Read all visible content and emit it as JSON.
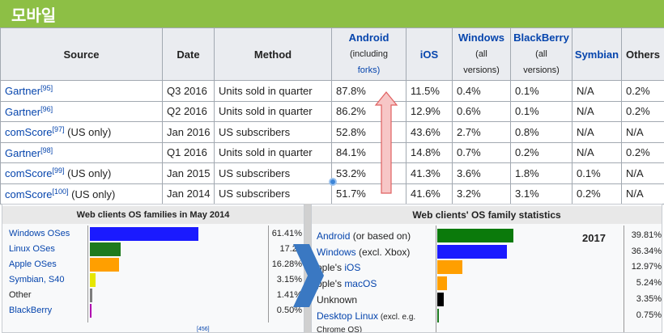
{
  "page_title": "모바일",
  "table": {
    "headers": [
      {
        "label": "Source",
        "link": false
      },
      {
        "label": "Date",
        "link": false
      },
      {
        "label": "Method",
        "link": false
      },
      {
        "label": "Android",
        "link": true,
        "sub": [
          "(including"
        ],
        "sub_link": "forks)"
      },
      {
        "label": "iOS",
        "link": true
      },
      {
        "label": "Windows",
        "link": true,
        "sub": [
          "(all",
          "versions)"
        ]
      },
      {
        "label": "BlackBerry",
        "link": true,
        "sub": [
          "(all",
          "versions)"
        ]
      },
      {
        "label": "Symbian",
        "link": true
      },
      {
        "label": "Others",
        "link": false
      }
    ],
    "rows": [
      {
        "source": "Gartner",
        "ref": "[95]",
        "note": "",
        "date": "Q3 2016",
        "method": "Units sold in quarter",
        "android": "87.8%",
        "ios": "11.5%",
        "windows": "0.4%",
        "blackberry": "0.1%",
        "symbian": "N/A",
        "others": "0.2%"
      },
      {
        "source": "Gartner",
        "ref": "[96]",
        "note": "",
        "date": "Q2 2016",
        "method": "Units sold in quarter",
        "android": "86.2%",
        "ios": "12.9%",
        "windows": "0.6%",
        "blackberry": "0.1%",
        "symbian": "N/A",
        "others": "0.2%"
      },
      {
        "source": "comScore",
        "ref": "[97]",
        "note": " (US only)",
        "date": "Jan 2016",
        "method": "US subscribers",
        "android": "52.8%",
        "ios": "43.6%",
        "windows": "2.7%",
        "blackberry": "0.8%",
        "symbian": "N/A",
        "others": "N/A"
      },
      {
        "source": "Gartner",
        "ref": "[98]",
        "note": "",
        "date": "Q1 2016",
        "method": "Units sold in quarter",
        "android": "84.1%",
        "ios": "14.8%",
        "windows": "0.7%",
        "blackberry": "0.2%",
        "symbian": "N/A",
        "others": "0.2%"
      },
      {
        "source": "comScore",
        "ref": "[99]",
        "note": " (US only)",
        "date": "Jan 2015",
        "method": "US subscribers",
        "android": "53.2%",
        "ios": "41.3%",
        "windows": "3.6%",
        "blackberry": "1.8%",
        "symbian": "0.1%",
        "others": "N/A"
      },
      {
        "source": "comScore",
        "ref": "[100]",
        "note": " (US only)",
        "date": "Jan 2014",
        "method": "US subscribers",
        "android": "51.7%",
        "ios": "41.6%",
        "windows": "3.2%",
        "blackberry": "3.1%",
        "symbian": "0.2%",
        "others": "N/A"
      }
    ]
  },
  "left_chart": {
    "title": "Web clients OS families in May 2014",
    "items": [
      {
        "label": "Windows OSes",
        "value": 61.41,
        "pct": "61.41%",
        "color": "#1a1aff",
        "link": true
      },
      {
        "label": "Linux OSes",
        "value": 17.22,
        "pct": "17.22",
        "color": "#1e7a1e",
        "link": true
      },
      {
        "label": "Apple OSes",
        "value": 16.28,
        "pct": "16.28%",
        "color": "#ff9f00",
        "link": true
      },
      {
        "label": "Symbian, S40",
        "value": 3.15,
        "pct": "3.15%",
        "color": "#e6e600",
        "link": true
      },
      {
        "label": "Other",
        "value": 1.41,
        "pct": "1.41%",
        "color": "#7d7d7d",
        "link": false
      },
      {
        "label": "BlackBerry",
        "value": 0.5,
        "pct": "0.50%",
        "color": "#b000b0",
        "link": true
      }
    ],
    "footnote": "[456]"
  },
  "right_chart": {
    "title": "Web clients' OS family statistics",
    "year": "2017",
    "items": [
      {
        "label": "Android",
        "suffix": " (or based on)",
        "value": 39.81,
        "pct": "39.81%",
        "color": "#0b7a0b",
        "link": true
      },
      {
        "label": "Windows",
        "suffix": " (excl. Xbox)",
        "value": 36.34,
        "pct": "36.34%",
        "color": "#1a1aff",
        "link": true
      },
      {
        "label": "pple's ",
        "linkpart": "iOS",
        "value": 12.97,
        "pct": "12.97%",
        "color": "#ff9f00",
        "link": false
      },
      {
        "label": "pple's ",
        "linkpart": "macOS",
        "value": 5.24,
        "pct": "5.24%",
        "color": "#ff9f00",
        "link": false
      },
      {
        "label": "Unknown",
        "value": 3.35,
        "pct": "3.35%",
        "color": "#000000",
        "link": false
      },
      {
        "label": "Desktop Linux",
        "suffix": " (excl. e.g.",
        "value": 0.75,
        "pct": "0.75%",
        "color": "#1e7a1e",
        "link": true
      }
    ],
    "last_line": "Chrome OS)"
  },
  "colors": {
    "title_bar": "#8dbf45",
    "link": "#0645ad",
    "header_bg": "#eaecf0",
    "arrow_fill": "#f7c6c6",
    "arrow_stroke": "#e06060",
    "chevron": "#3a78c2"
  },
  "icons": {
    "arrow": "up-arrow-icon",
    "chevron": "chevron-right-icon",
    "cursor": "mouse-cursor-icon"
  }
}
